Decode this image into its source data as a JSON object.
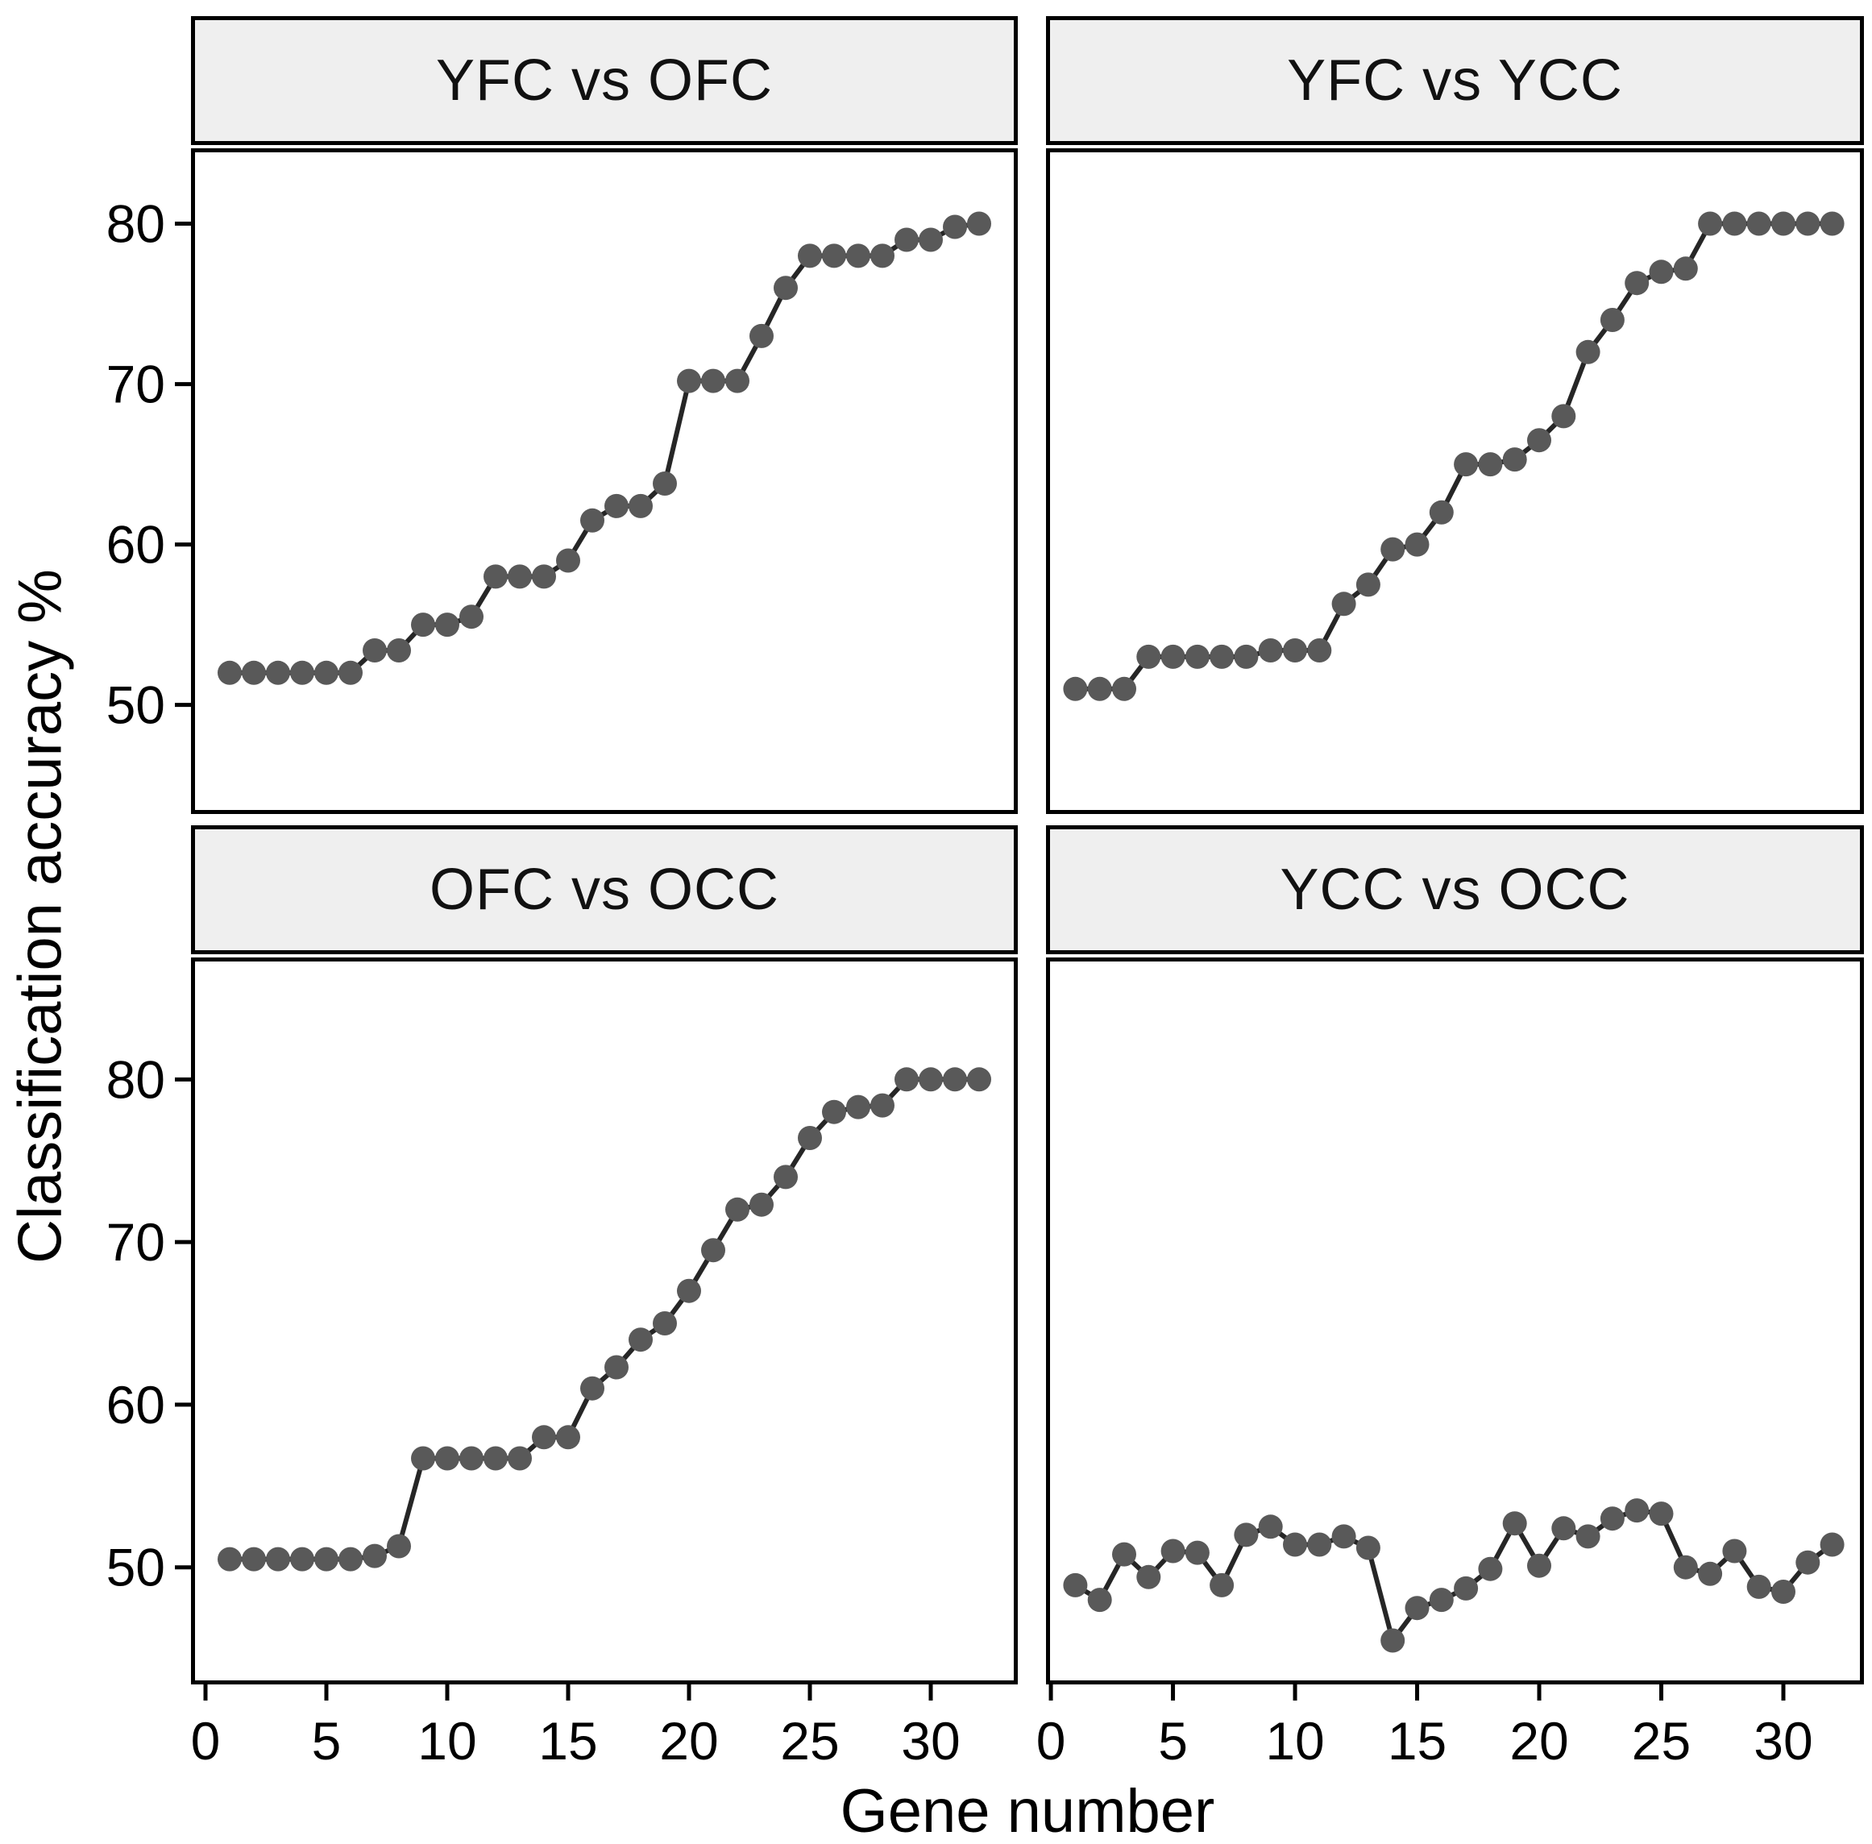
{
  "chart_data": {
    "type": "line",
    "title": "",
    "xlabel": "Gene number",
    "ylabel": "Classification accuracy %",
    "grid": false,
    "legend": "none",
    "point_color": "#595959",
    "line_color": "#262626",
    "strip_bg": "#efefef",
    "text_color": "#000000",
    "point_radius": 15,
    "line_width": 6,
    "x": [
      1,
      2,
      3,
      4,
      5,
      6,
      7,
      8,
      9,
      10,
      11,
      12,
      13,
      14,
      15,
      16,
      17,
      18,
      19,
      20,
      21,
      22,
      23,
      24,
      25,
      26,
      27,
      28,
      29,
      30,
      31,
      32
    ],
    "x_ticks": [
      0,
      5,
      10,
      15,
      20,
      25,
      30
    ],
    "y_ticks": [
      80,
      70,
      60,
      50
    ],
    "xlim_cols": [
      [
        -0.6,
        33.6
      ],
      [
        -0.2,
        33.3
      ]
    ],
    "ylim_rows": [
      [
        43.2,
        84.7
      ],
      [
        42.8,
        87.5
      ]
    ],
    "facets": [
      {
        "label": "YFC vs OFC",
        "row": 0,
        "col": 0,
        "values": [
          52,
          52,
          52,
          52,
          52,
          52,
          53.4,
          53.4,
          55,
          55,
          55.5,
          58,
          58,
          58,
          59,
          61.5,
          62.4,
          62.4,
          63.8,
          70.2,
          70.2,
          70.2,
          73,
          76,
          78,
          78,
          78,
          78,
          79,
          79,
          79.8,
          80
        ]
      },
      {
        "label": "YFC vs YCC",
        "row": 0,
        "col": 1,
        "values": [
          51,
          51,
          51,
          53,
          53,
          53,
          53,
          53,
          53.4,
          53.4,
          53.4,
          56.3,
          57.5,
          59.7,
          60,
          62,
          65,
          65,
          65.3,
          66.5,
          68,
          72,
          74,
          76.3,
          77,
          77.2,
          80,
          80,
          80,
          80,
          80,
          80
        ]
      },
      {
        "label": "OFC vs OCC",
        "row": 1,
        "col": 0,
        "values": [
          50.5,
          50.5,
          50.5,
          50.5,
          50.5,
          50.5,
          50.7,
          51.3,
          56.7,
          56.7,
          56.7,
          56.7,
          56.7,
          58,
          58,
          61,
          62.3,
          64,
          65,
          67,
          69.5,
          72,
          72.3,
          74,
          76.4,
          78,
          78.3,
          78.4,
          80,
          80,
          80,
          80
        ]
      },
      {
        "label": "YCC vs OCC",
        "row": 1,
        "col": 1,
        "values": [
          48.9,
          48,
          50.8,
          49.4,
          51,
          50.9,
          48.9,
          52,
          52.5,
          51.4,
          51.4,
          51.9,
          51.2,
          45.5,
          47.5,
          48,
          48.7,
          49.9,
          52.7,
          50.1,
          52.4,
          51.9,
          53,
          53.5,
          53.3,
          50,
          49.6,
          51,
          48.8,
          48.5,
          50.3,
          51.4
        ]
      }
    ]
  }
}
